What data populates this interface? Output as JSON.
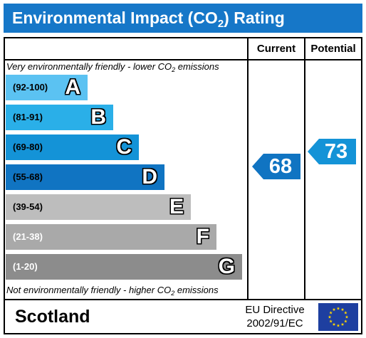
{
  "title": {
    "main": "Environmental Impact (CO",
    "sub": "2",
    "rest": ") Rating"
  },
  "columns": {
    "current": "Current",
    "potential": "Potential"
  },
  "top_note": {
    "pre": "Very environmentally friendly - lower CO",
    "sub": "2",
    "post": " emissions"
  },
  "bottom_note": {
    "pre": "Not environmentally friendly - higher CO",
    "sub": "2",
    "post": " emissions"
  },
  "bands": [
    {
      "range": "(92-100)",
      "letter": "A",
      "color": "#5bc2f2",
      "range_color": "#000000"
    },
    {
      "range": "(81-91)",
      "letter": "B",
      "color": "#2aafe8",
      "range_color": "#000000"
    },
    {
      "range": "(69-80)",
      "letter": "C",
      "color": "#1493d7",
      "range_color": "#000000"
    },
    {
      "range": "(55-68)",
      "letter": "D",
      "color": "#1074c2",
      "range_color": "#000000"
    },
    {
      "range": "(39-54)",
      "letter": "E",
      "color": "#bdbdbd",
      "range_color": "#000000"
    },
    {
      "range": "(21-38)",
      "letter": "F",
      "color": "#a9a9a9",
      "range_color": "#ffffff"
    },
    {
      "range": "(1-20)",
      "letter": "G",
      "color": "#8c8c8c",
      "range_color": "#ffffff"
    }
  ],
  "current": {
    "value": "68",
    "color": "#1074c2"
  },
  "potential": {
    "value": "73",
    "color": "#1493d7"
  },
  "footer": {
    "region": "Scotland",
    "directive_line1": "EU Directive",
    "directive_line2": "2002/91/EC"
  },
  "icons": {
    "flag": "eu-flag-icon"
  }
}
